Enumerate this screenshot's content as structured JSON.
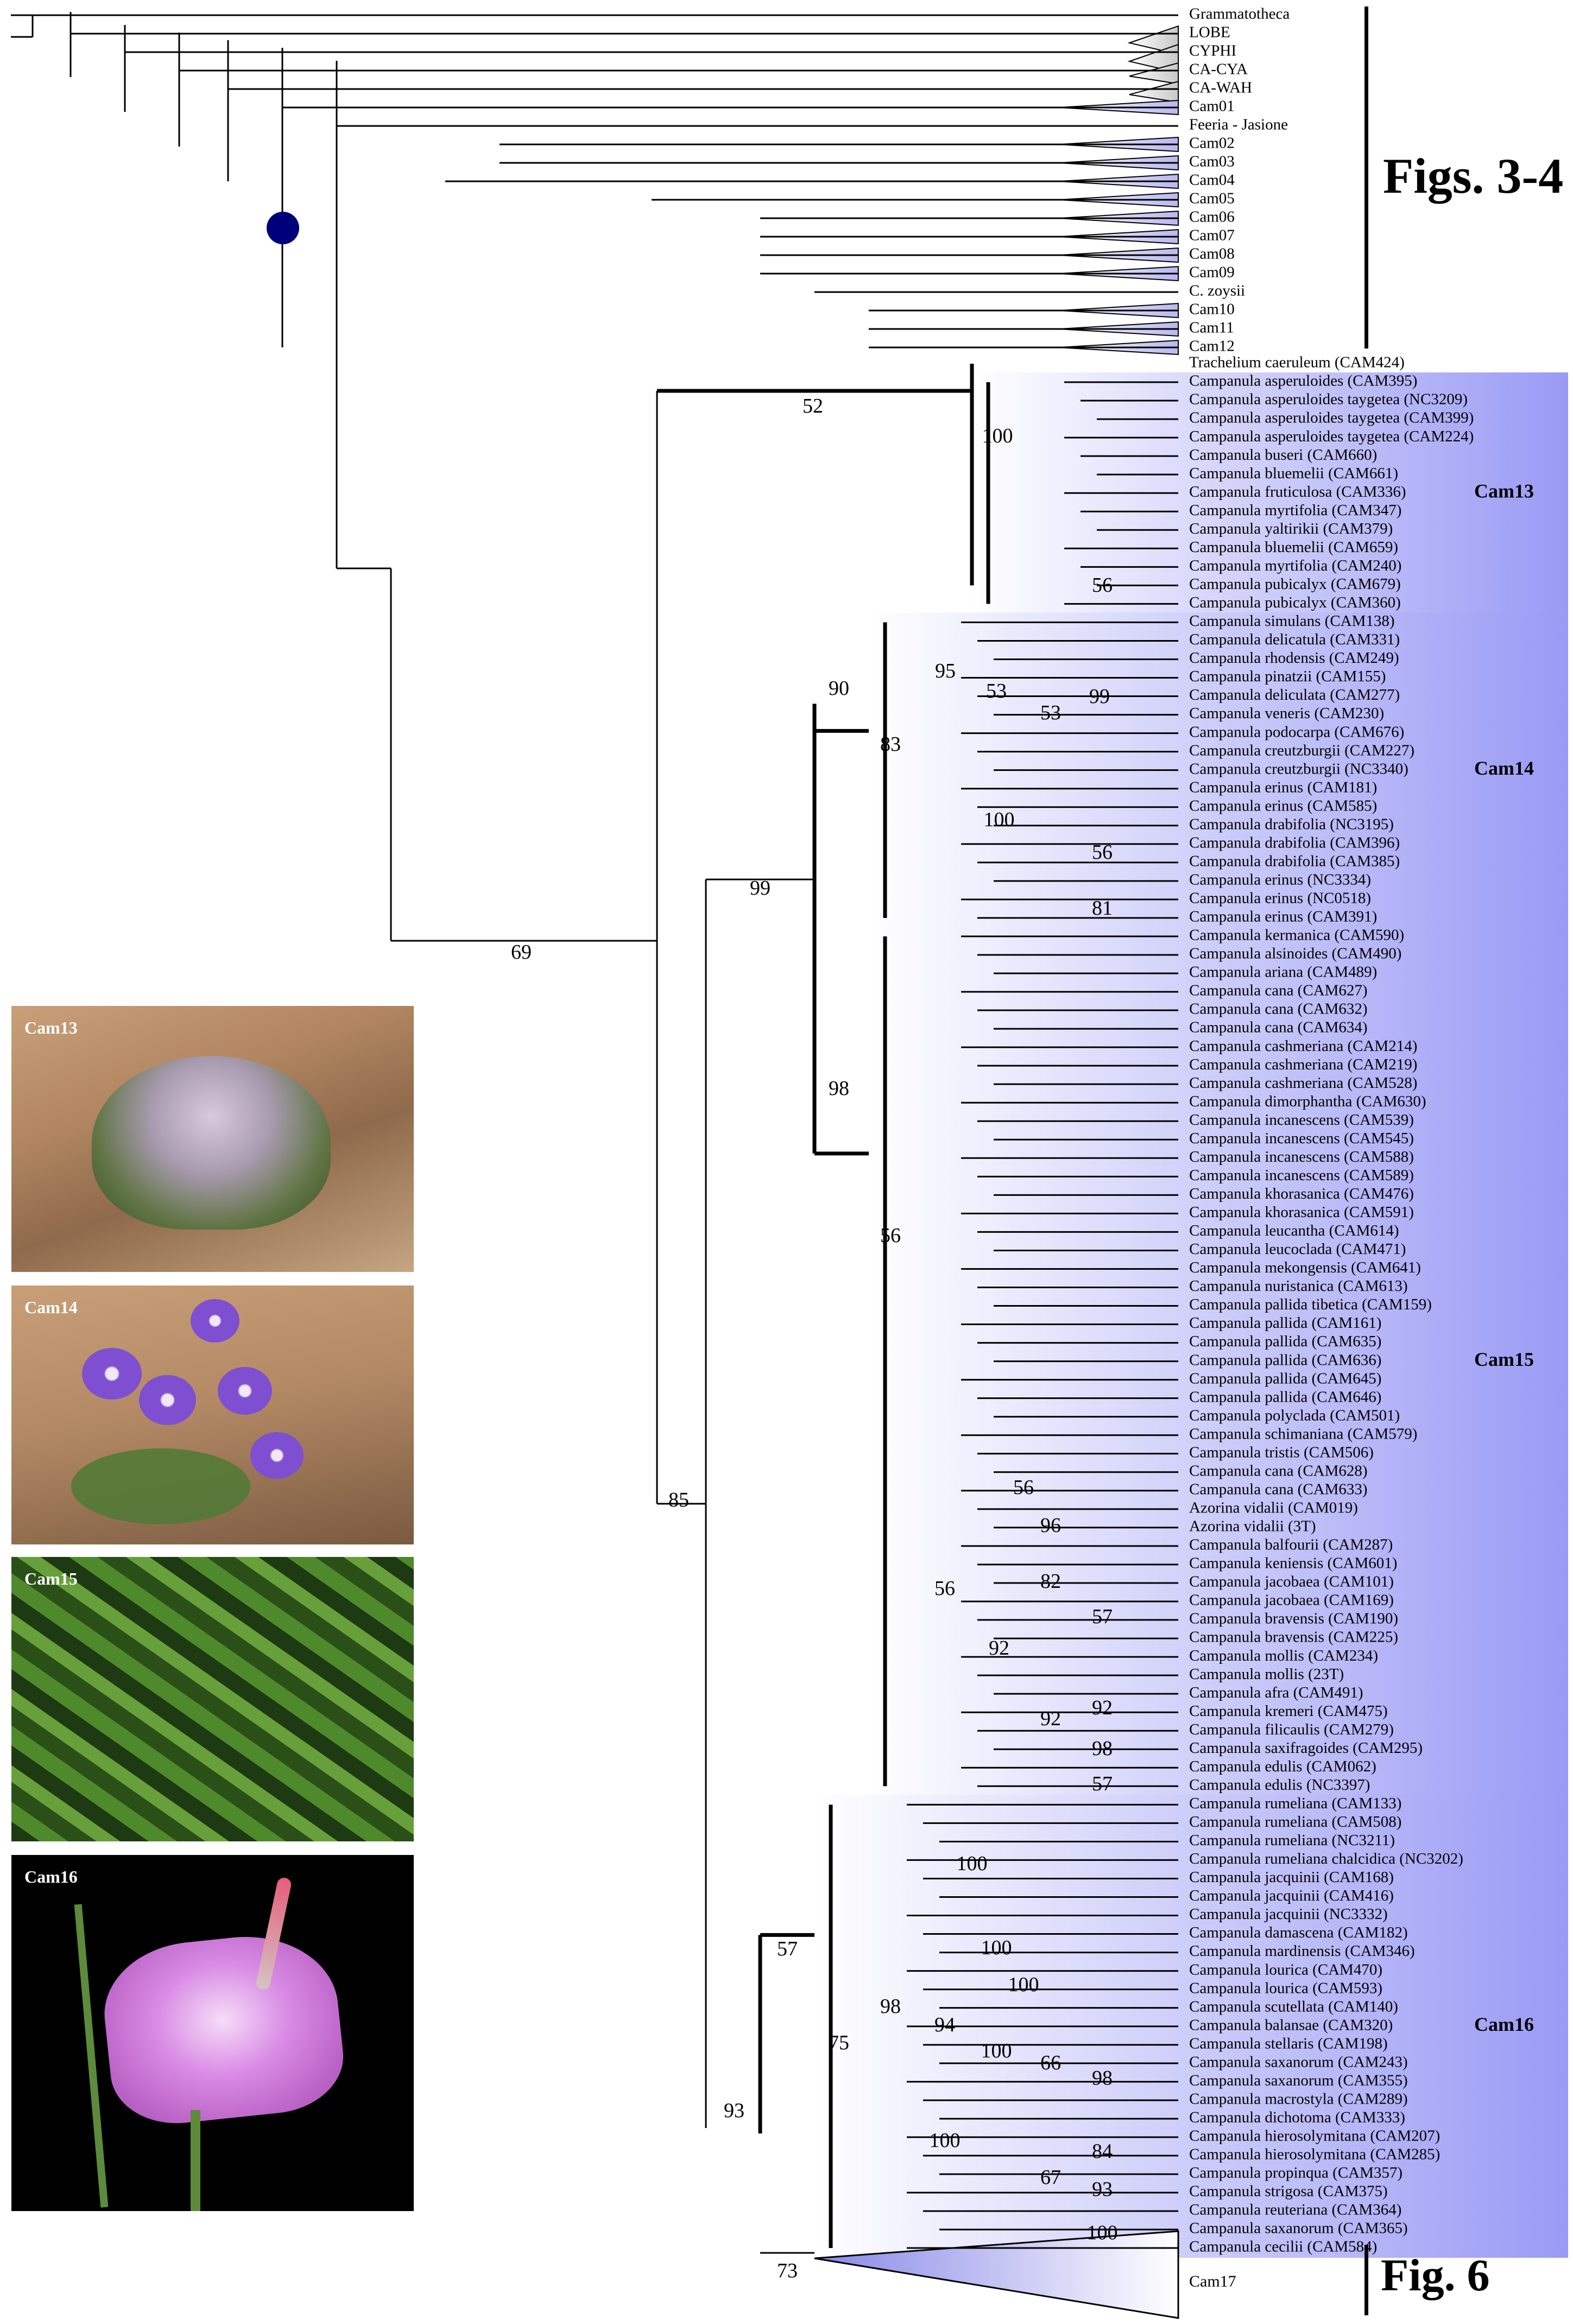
{
  "group_labels": {
    "figs34": "Figs. 3-4",
    "fig6": "Fig. 6"
  },
  "top_tips": [
    "Grammatotheca",
    "LOBE",
    "CYPHI",
    "CA-CYA",
    "CA-WAH",
    "Cam01",
    "Feeria - Jasione",
    "Cam02",
    "Cam03",
    "Cam04",
    "Cam05",
    "Cam06",
    "Cam07",
    "Cam08",
    "Cam09",
    "C. zoysii",
    "Cam10",
    "Cam11",
    "Cam12"
  ],
  "trachelium": "Trachelium caeruleum (CAM424)",
  "clades": [
    {
      "name": "Cam13",
      "tips": [
        "Campanula asperuloides (CAM395)",
        "Campanula asperuloides taygetea (NC3209)",
        "Campanula asperuloides taygetea (CAM399)",
        "Campanula asperuloides taygetea (CAM224)",
        "Campanula buseri (CAM660)",
        "Campanula bluemelii (CAM661)",
        "Campanula fruticulosa (CAM336)",
        "Campanula myrtifolia (CAM347)",
        "Campanula yaltirikii (CAM379)",
        "Campanula bluemelii (CAM659)",
        "Campanula myrtifolia (CAM240)",
        "Campanula pubicalyx (CAM679)",
        "Campanula pubicalyx (CAM360)"
      ]
    },
    {
      "name": "Cam14",
      "tips": [
        "Campanula simulans (CAM138)",
        "Campanula delicatula (CAM331)",
        "Campanula rhodensis (CAM249)",
        "Campanula pinatzii (CAM155)",
        "Campanula deliculata (CAM277)",
        "Campanula veneris (CAM230)",
        "Campanula podocarpa (CAM676)",
        "Campanula creutzburgii (CAM227)",
        "Campanula creutzburgii (NC3340)",
        "Campanula erinus (CAM181)",
        "Campanula erinus (CAM585)",
        "Campanula drabifolia (NC3195)",
        "Campanula drabifolia (CAM396)",
        "Campanula drabifolia (CAM385)",
        "Campanula erinus (NC3334)",
        "Campanula erinus (NC0518)",
        "Campanula erinus (CAM391)"
      ]
    },
    {
      "name": "Cam15",
      "tips": [
        "Campanula kermanica (CAM590)",
        "Campanula alsinoides (CAM490)",
        "Campanula ariana (CAM489)",
        "Campanula cana (CAM627)",
        "Campanula cana (CAM632)",
        "Campanula cana (CAM634)",
        "Campanula cashmeriana (CAM214)",
        "Campanula cashmeriana (CAM219)",
        "Campanula cashmeriana (CAM528)",
        "Campanula dimorphantha (CAM630)",
        "Campanula incanescens (CAM539)",
        "Campanula incanescens (CAM545)",
        "Campanula incanescens (CAM588)",
        "Campanula incanescens (CAM589)",
        "Campanula khorasanica (CAM476)",
        "Campanula khorasanica (CAM591)",
        "Campanula leucantha (CAM614)",
        "Campanula leucoclada (CAM471)",
        "Campanula mekongensis (CAM641)",
        "Campanula nuristanica (CAM613)",
        "Campanula pallida tibetica (CAM159)",
        "Campanula pallida (CAM161)",
        "Campanula pallida (CAM635)",
        "Campanula pallida (CAM636)",
        "Campanula pallida (CAM645)",
        "Campanula pallida (CAM646)",
        "Campanula polyclada (CAM501)",
        "Campanula schimaniana (CAM579)",
        "Campanula tristis (CAM506)",
        "Campanula cana (CAM628)",
        "Campanula cana (CAM633)",
        "Azorina vidalii (CAM019)",
        "Azorina vidalii (3T)",
        "Campanula balfourii (CAM287)",
        "Campanula keniensis (CAM601)",
        "Campanula jacobaea (CAM101)",
        "Campanula jacobaea (CAM169)",
        "Campanula bravensis (CAM190)",
        "Campanula bravensis (CAM225)",
        "Campanula mollis (CAM234)",
        "Campanula mollis (23T)",
        "Campanula afra (CAM491)",
        "Campanula kremeri (CAM475)",
        "Campanula filicaulis (CAM279)",
        "Campanula saxifragoides (CAM295)",
        "Campanula edulis (CAM062)",
        "Campanula edulis (NC3397)"
      ]
    },
    {
      "name": "Cam16",
      "tips": [
        "Campanula rumeliana (CAM133)",
        "Campanula rumeliana (CAM508)",
        "Campanula rumeliana (NC3211)",
        "Campanula rumeliana chalcidica (NC3202)",
        "Campanula jacquinii (CAM168)",
        "Campanula jacquinii (CAM416)",
        "Campanula jacquinii (NC3332)",
        "Campanula damascena (CAM182)",
        "Campanula mardinensis (CAM346)",
        "Campanula lourica (CAM470)",
        "Campanula lourica (CAM593)",
        "Campanula scutellata (CAM140)",
        "Campanula balansae (CAM320)",
        "Campanula stellaris (CAM198)",
        "Campanula saxanorum (CAM243)",
        "Campanula saxanorum (CAM355)",
        "Campanula macrostyla (CAM289)",
        "Campanula dichotoma (CAM333)",
        "Campanula hierosolymitana (CAM207)",
        "Campanula hierosolymitana (CAM285)",
        "Campanula propinqua (CAM357)",
        "Campanula strigosa (CAM375)",
        "Campanula reuteriana (CAM364)",
        "Campanula saxanorum (CAM365)",
        "Campanula cecilii (CAM584)"
      ]
    }
  ],
  "cam17": "Cam17",
  "photos": [
    {
      "caption": "Cam13"
    },
    {
      "caption": "Cam14"
    },
    {
      "caption": "Cam15"
    },
    {
      "caption": "Cam16"
    }
  ],
  "colors": {
    "clade_fill": "#9a9af5",
    "node_dot": "#00007a",
    "gray_wedge": "#cfcfcf"
  }
}
